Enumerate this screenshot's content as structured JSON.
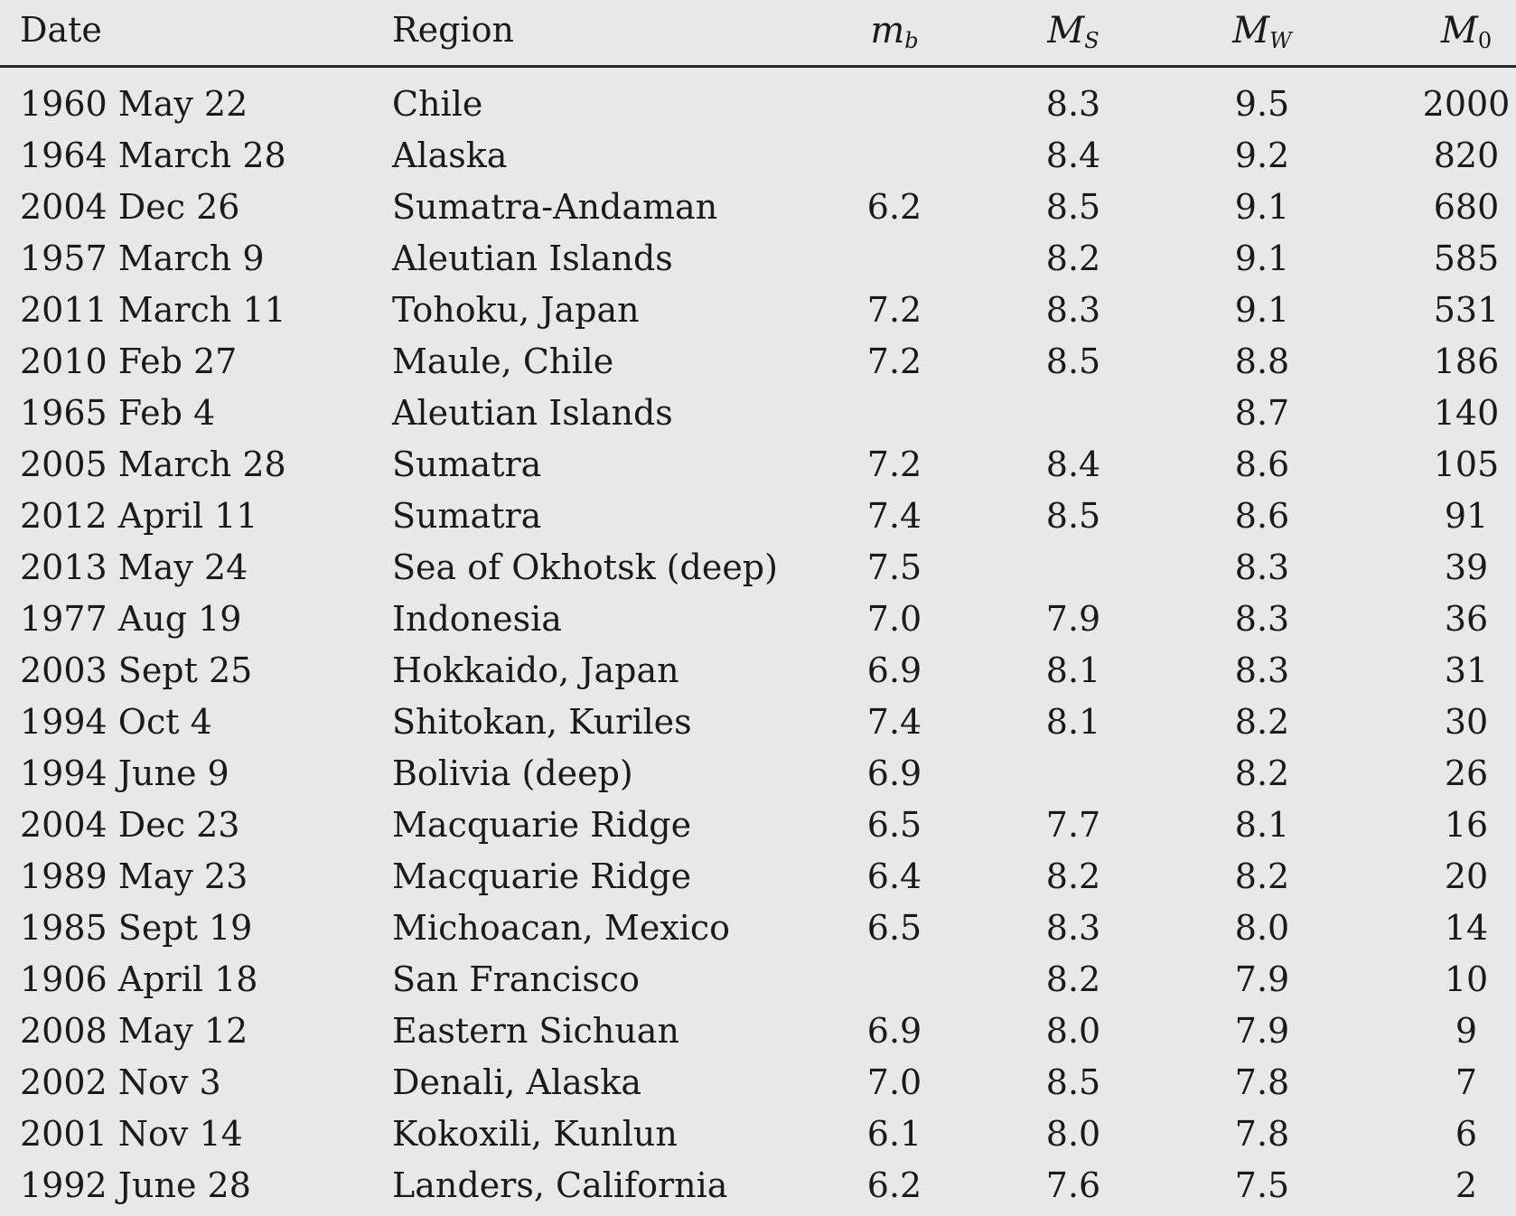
{
  "header": {
    "date": "Date",
    "region": "Region",
    "mb_main": "m",
    "mb_sub": "b",
    "ms_main": "M",
    "ms_sub": "S",
    "mw_main": "M",
    "mw_sub": "W",
    "m0_main": "M",
    "m0_sub": "0"
  },
  "rows": [
    {
      "date": "1960 May 22",
      "region": "Chile",
      "mb": "",
      "ms": "8.3",
      "mw": "9.5",
      "m0": "2000"
    },
    {
      "date": "1964 March 28",
      "region": "Alaska",
      "mb": "",
      "ms": "8.4",
      "mw": "9.2",
      "m0": "820"
    },
    {
      "date": "2004 Dec 26",
      "region": "Sumatra-Andaman",
      "mb": "6.2",
      "ms": "8.5",
      "mw": "9.1",
      "m0": "680"
    },
    {
      "date": "1957 March 9",
      "region": "Aleutian Islands",
      "mb": "",
      "ms": "8.2",
      "mw": "9.1",
      "m0": "585"
    },
    {
      "date": "2011 March 11",
      "region": "Tohoku, Japan",
      "mb": "7.2",
      "ms": "8.3",
      "mw": "9.1",
      "m0": "531"
    },
    {
      "date": "2010 Feb 27",
      "region": "Maule, Chile",
      "mb": "7.2",
      "ms": "8.5",
      "mw": "8.8",
      "m0": "186"
    },
    {
      "date": "1965 Feb 4",
      "region": "Aleutian Islands",
      "mb": "",
      "ms": "",
      "mw": "8.7",
      "m0": "140"
    },
    {
      "date": "2005 March 28",
      "region": "Sumatra",
      "mb": "7.2",
      "ms": "8.4",
      "mw": "8.6",
      "m0": "105"
    },
    {
      "date": "2012 April 11",
      "region": "Sumatra",
      "mb": "7.4",
      "ms": "8.5",
      "mw": "8.6",
      "m0": "91"
    },
    {
      "date": "2013 May 24",
      "region": "Sea of Okhotsk (deep)",
      "mb": "7.5",
      "ms": "",
      "mw": "8.3",
      "m0": "39"
    },
    {
      "date": "1977 Aug 19",
      "region": "Indonesia",
      "mb": "7.0",
      "ms": "7.9",
      "mw": "8.3",
      "m0": "36"
    },
    {
      "date": "2003 Sept 25",
      "region": "Hokkaido, Japan",
      "mb": "6.9",
      "ms": "8.1",
      "mw": "8.3",
      "m0": "31"
    },
    {
      "date": "1994 Oct 4",
      "region": "Shitokan, Kuriles",
      "mb": "7.4",
      "ms": "8.1",
      "mw": "8.2",
      "m0": "30"
    },
    {
      "date": "1994 June 9",
      "region": "Bolivia (deep)",
      "mb": "6.9",
      "ms": "",
      "mw": "8.2",
      "m0": "26"
    },
    {
      "date": "2004 Dec 23",
      "region": "Macquarie Ridge",
      "mb": "6.5",
      "ms": "7.7",
      "mw": "8.1",
      "m0": "16"
    },
    {
      "date": "1989 May 23",
      "region": "Macquarie Ridge",
      "mb": "6.4",
      "ms": "8.2",
      "mw": "8.2",
      "m0": "20"
    },
    {
      "date": "1985 Sept 19",
      "region": "Michoacan, Mexico",
      "mb": "6.5",
      "ms": "8.3",
      "mw": "8.0",
      "m0": "14"
    },
    {
      "date": "1906 April 18",
      "region": "San Francisco",
      "mb": "",
      "ms": "8.2",
      "mw": "7.9",
      "m0": "10"
    },
    {
      "date": "2008 May 12",
      "region": "Eastern Sichuan",
      "mb": "6.9",
      "ms": "8.0",
      "mw": "7.9",
      "m0": "9"
    },
    {
      "date": "2002 Nov 3",
      "region": "Denali, Alaska",
      "mb": "7.0",
      "ms": "8.5",
      "mw": "7.8",
      "m0": "7"
    },
    {
      "date": "2001 Nov 14",
      "region": "Kokoxili, Kunlun",
      "mb": "6.1",
      "ms": "8.0",
      "mw": "7.8",
      "m0": "6"
    },
    {
      "date": "1992 June 28",
      "region": "Landers, California",
      "mb": "6.2",
      "ms": "7.6",
      "mw": "7.5",
      "m0": "2"
    }
  ]
}
